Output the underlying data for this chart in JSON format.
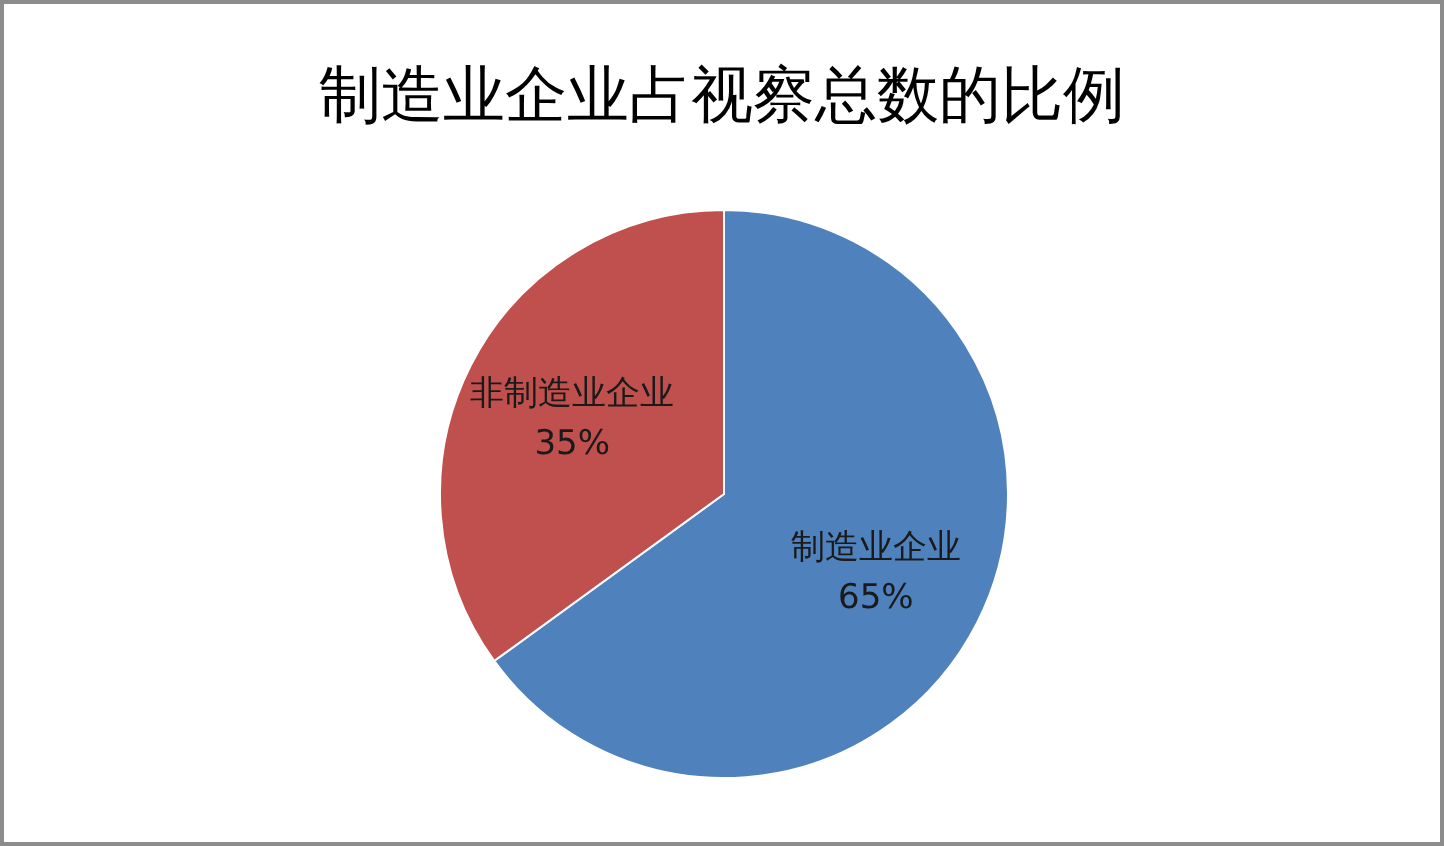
{
  "chart_data": {
    "type": "pie",
    "title": "制造业企业占视察总数的比例",
    "categories": [
      "制造业企业",
      "非制造业企业"
    ],
    "values": [
      65,
      35
    ],
    "colors": [
      "#4f81bd",
      "#c0504d"
    ],
    "value_labels": [
      "65%",
      "35%"
    ]
  }
}
